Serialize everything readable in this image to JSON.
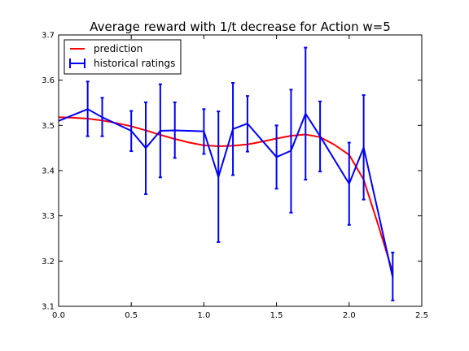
{
  "chart_data": {
    "type": "line",
    "title": "Average reward with 1/t decrease for Action w=5",
    "xlabel": "",
    "ylabel": "",
    "xlim": [
      0.0,
      2.5
    ],
    "ylim": [
      3.1,
      3.7
    ],
    "x_ticks": [
      "0.0",
      "0.5",
      "1.0",
      "1.5",
      "2.0",
      "2.5"
    ],
    "y_ticks": [
      "3.1",
      "3.2",
      "3.3",
      "3.4",
      "3.5",
      "3.6",
      "3.7"
    ],
    "grid": false,
    "legend_position": "top-left",
    "series": [
      {
        "name": "prediction",
        "color": "#ff0000",
        "x": [
          0.0,
          0.1,
          0.2,
          0.3,
          0.4,
          0.5,
          0.6,
          0.7,
          0.8,
          0.9,
          1.0,
          1.1,
          1.2,
          1.3,
          1.4,
          1.5,
          1.6,
          1.7,
          1.8,
          1.9,
          2.0,
          2.1,
          2.2,
          2.3
        ],
        "y": [
          3.518,
          3.517,
          3.515,
          3.511,
          3.505,
          3.498,
          3.489,
          3.479,
          3.47,
          3.462,
          3.456,
          3.454,
          3.455,
          3.458,
          3.464,
          3.471,
          3.477,
          3.48,
          3.474,
          3.457,
          3.435,
          3.38,
          3.28,
          3.175
        ]
      },
      {
        "name": "historical ratings",
        "color": "#0000ff",
        "x": [
          0.0,
          0.2,
          0.3,
          0.5,
          0.6,
          0.7,
          0.8,
          1.0,
          1.1,
          1.2,
          1.3,
          1.5,
          1.6,
          1.7,
          1.8,
          2.0,
          2.1,
          2.3
        ],
        "y": [
          3.51,
          3.536,
          3.518,
          3.488,
          3.45,
          3.488,
          3.489,
          3.487,
          3.386,
          3.492,
          3.504,
          3.43,
          3.444,
          3.526,
          3.476,
          3.371,
          3.451,
          3.164
        ],
        "err_low": [
          3.51,
          3.476,
          3.476,
          3.443,
          3.348,
          3.385,
          3.428,
          3.437,
          3.242,
          3.39,
          3.442,
          3.36,
          3.307,
          3.38,
          3.398,
          3.28,
          3.336,
          3.113
        ],
        "err_high": [
          3.51,
          3.597,
          3.561,
          3.532,
          3.551,
          3.591,
          3.551,
          3.536,
          3.531,
          3.594,
          3.565,
          3.5,
          3.579,
          3.672,
          3.553,
          3.462,
          3.567,
          3.219
        ]
      }
    ]
  }
}
